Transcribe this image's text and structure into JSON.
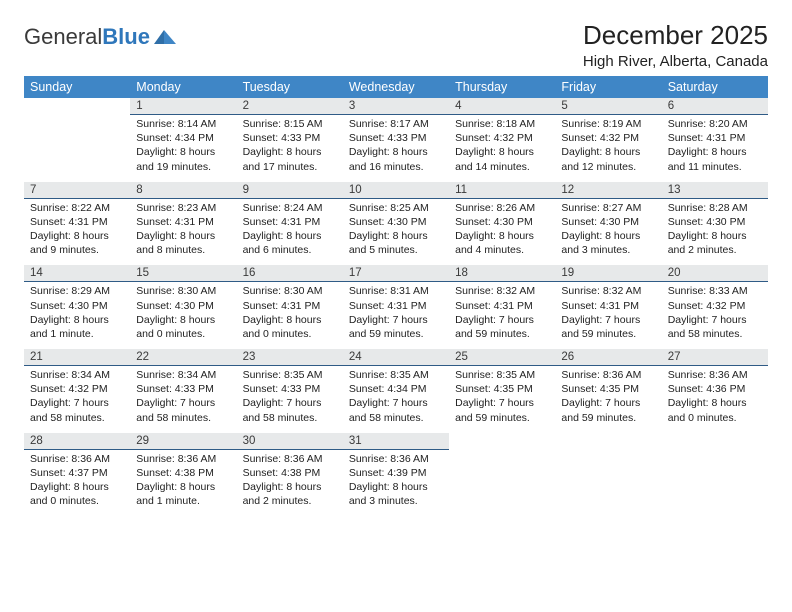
{
  "brand": {
    "part1": "General",
    "part2": "Blue"
  },
  "title": "December 2025",
  "location": "High River, Alberta, Canada",
  "dayHeaders": [
    "Sunday",
    "Monday",
    "Tuesday",
    "Wednesday",
    "Thursday",
    "Friday",
    "Saturday"
  ],
  "style": {
    "header_bg": "#3f86c6",
    "header_color": "#ffffff",
    "daynum_bg": "#e7e9ea",
    "daynum_border": "#2f5b86",
    "page_bg": "#ffffff",
    "text_color": "#222222",
    "title_fontsize": 26,
    "location_fontsize": 15,
    "header_fontsize": 12.5,
    "cell_fontsize": 10.5,
    "daynum_fontsize": 11.5
  },
  "firstWeekday": 1,
  "days": [
    {
      "n": 1,
      "sunrise": "8:14 AM",
      "sunset": "4:34 PM",
      "daylight": "8 hours and 19 minutes."
    },
    {
      "n": 2,
      "sunrise": "8:15 AM",
      "sunset": "4:33 PM",
      "daylight": "8 hours and 17 minutes."
    },
    {
      "n": 3,
      "sunrise": "8:17 AM",
      "sunset": "4:33 PM",
      "daylight": "8 hours and 16 minutes."
    },
    {
      "n": 4,
      "sunrise": "8:18 AM",
      "sunset": "4:32 PM",
      "daylight": "8 hours and 14 minutes."
    },
    {
      "n": 5,
      "sunrise": "8:19 AM",
      "sunset": "4:32 PM",
      "daylight": "8 hours and 12 minutes."
    },
    {
      "n": 6,
      "sunrise": "8:20 AM",
      "sunset": "4:31 PM",
      "daylight": "8 hours and 11 minutes."
    },
    {
      "n": 7,
      "sunrise": "8:22 AM",
      "sunset": "4:31 PM",
      "daylight": "8 hours and 9 minutes."
    },
    {
      "n": 8,
      "sunrise": "8:23 AM",
      "sunset": "4:31 PM",
      "daylight": "8 hours and 8 minutes."
    },
    {
      "n": 9,
      "sunrise": "8:24 AM",
      "sunset": "4:31 PM",
      "daylight": "8 hours and 6 minutes."
    },
    {
      "n": 10,
      "sunrise": "8:25 AM",
      "sunset": "4:30 PM",
      "daylight": "8 hours and 5 minutes."
    },
    {
      "n": 11,
      "sunrise": "8:26 AM",
      "sunset": "4:30 PM",
      "daylight": "8 hours and 4 minutes."
    },
    {
      "n": 12,
      "sunrise": "8:27 AM",
      "sunset": "4:30 PM",
      "daylight": "8 hours and 3 minutes."
    },
    {
      "n": 13,
      "sunrise": "8:28 AM",
      "sunset": "4:30 PM",
      "daylight": "8 hours and 2 minutes."
    },
    {
      "n": 14,
      "sunrise": "8:29 AM",
      "sunset": "4:30 PM",
      "daylight": "8 hours and 1 minute."
    },
    {
      "n": 15,
      "sunrise": "8:30 AM",
      "sunset": "4:30 PM",
      "daylight": "8 hours and 0 minutes."
    },
    {
      "n": 16,
      "sunrise": "8:30 AM",
      "sunset": "4:31 PM",
      "daylight": "8 hours and 0 minutes."
    },
    {
      "n": 17,
      "sunrise": "8:31 AM",
      "sunset": "4:31 PM",
      "daylight": "7 hours and 59 minutes."
    },
    {
      "n": 18,
      "sunrise": "8:32 AM",
      "sunset": "4:31 PM",
      "daylight": "7 hours and 59 minutes."
    },
    {
      "n": 19,
      "sunrise": "8:32 AM",
      "sunset": "4:31 PM",
      "daylight": "7 hours and 59 minutes."
    },
    {
      "n": 20,
      "sunrise": "8:33 AM",
      "sunset": "4:32 PM",
      "daylight": "7 hours and 58 minutes."
    },
    {
      "n": 21,
      "sunrise": "8:34 AM",
      "sunset": "4:32 PM",
      "daylight": "7 hours and 58 minutes."
    },
    {
      "n": 22,
      "sunrise": "8:34 AM",
      "sunset": "4:33 PM",
      "daylight": "7 hours and 58 minutes."
    },
    {
      "n": 23,
      "sunrise": "8:35 AM",
      "sunset": "4:33 PM",
      "daylight": "7 hours and 58 minutes."
    },
    {
      "n": 24,
      "sunrise": "8:35 AM",
      "sunset": "4:34 PM",
      "daylight": "7 hours and 58 minutes."
    },
    {
      "n": 25,
      "sunrise": "8:35 AM",
      "sunset": "4:35 PM",
      "daylight": "7 hours and 59 minutes."
    },
    {
      "n": 26,
      "sunrise": "8:36 AM",
      "sunset": "4:35 PM",
      "daylight": "7 hours and 59 minutes."
    },
    {
      "n": 27,
      "sunrise": "8:36 AM",
      "sunset": "4:36 PM",
      "daylight": "8 hours and 0 minutes."
    },
    {
      "n": 28,
      "sunrise": "8:36 AM",
      "sunset": "4:37 PM",
      "daylight": "8 hours and 0 minutes."
    },
    {
      "n": 29,
      "sunrise": "8:36 AM",
      "sunset": "4:38 PM",
      "daylight": "8 hours and 1 minute."
    },
    {
      "n": 30,
      "sunrise": "8:36 AM",
      "sunset": "4:38 PM",
      "daylight": "8 hours and 2 minutes."
    },
    {
      "n": 31,
      "sunrise": "8:36 AM",
      "sunset": "4:39 PM",
      "daylight": "8 hours and 3 minutes."
    }
  ],
  "labels": {
    "sunrise": "Sunrise:",
    "sunset": "Sunset:",
    "daylight": "Daylight:"
  }
}
